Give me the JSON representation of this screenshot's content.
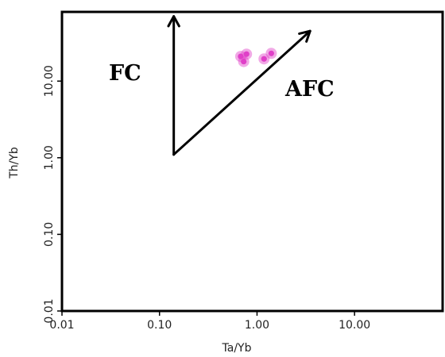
{
  "chart_data": {
    "type": "scatter",
    "xlabel": "Ta/Yb",
    "ylabel": "Th/Yb",
    "xscale": "log",
    "yscale": "log",
    "xlim": [
      0.01,
      80
    ],
    "ylim": [
      0.01,
      80
    ],
    "grid": false,
    "x_ticks": [
      {
        "value": 0.01,
        "label": "0.01"
      },
      {
        "value": 0.1,
        "label": "0.10"
      },
      {
        "value": 1,
        "label": "1.00"
      },
      {
        "value": 10,
        "label": "10.00"
      }
    ],
    "y_ticks": [
      {
        "value": 0.01,
        "label": "0.01"
      },
      {
        "value": 0.1,
        "label": "0.10"
      },
      {
        "value": 1,
        "label": "1.00"
      },
      {
        "value": 10,
        "label": "10.00"
      }
    ],
    "series": [
      {
        "color": "#e040c8",
        "points": [
          {
            "x": 0.68,
            "y": 21
          },
          {
            "x": 0.78,
            "y": 22.5
          },
          {
            "x": 0.73,
            "y": 18
          },
          {
            "x": 1.18,
            "y": 19.5
          },
          {
            "x": 1.4,
            "y": 23
          }
        ]
      }
    ],
    "annotations": [
      {
        "text": "FC",
        "arrow_from": {
          "x": 0.14,
          "y": 1.1
        },
        "arrow_to": {
          "x": 0.14,
          "y": 70
        }
      },
      {
        "text": "AFC",
        "arrow_from": {
          "x": 0.14,
          "y": 1.1
        },
        "arrow_to": {
          "x": 3.5,
          "y": 45
        }
      }
    ]
  }
}
